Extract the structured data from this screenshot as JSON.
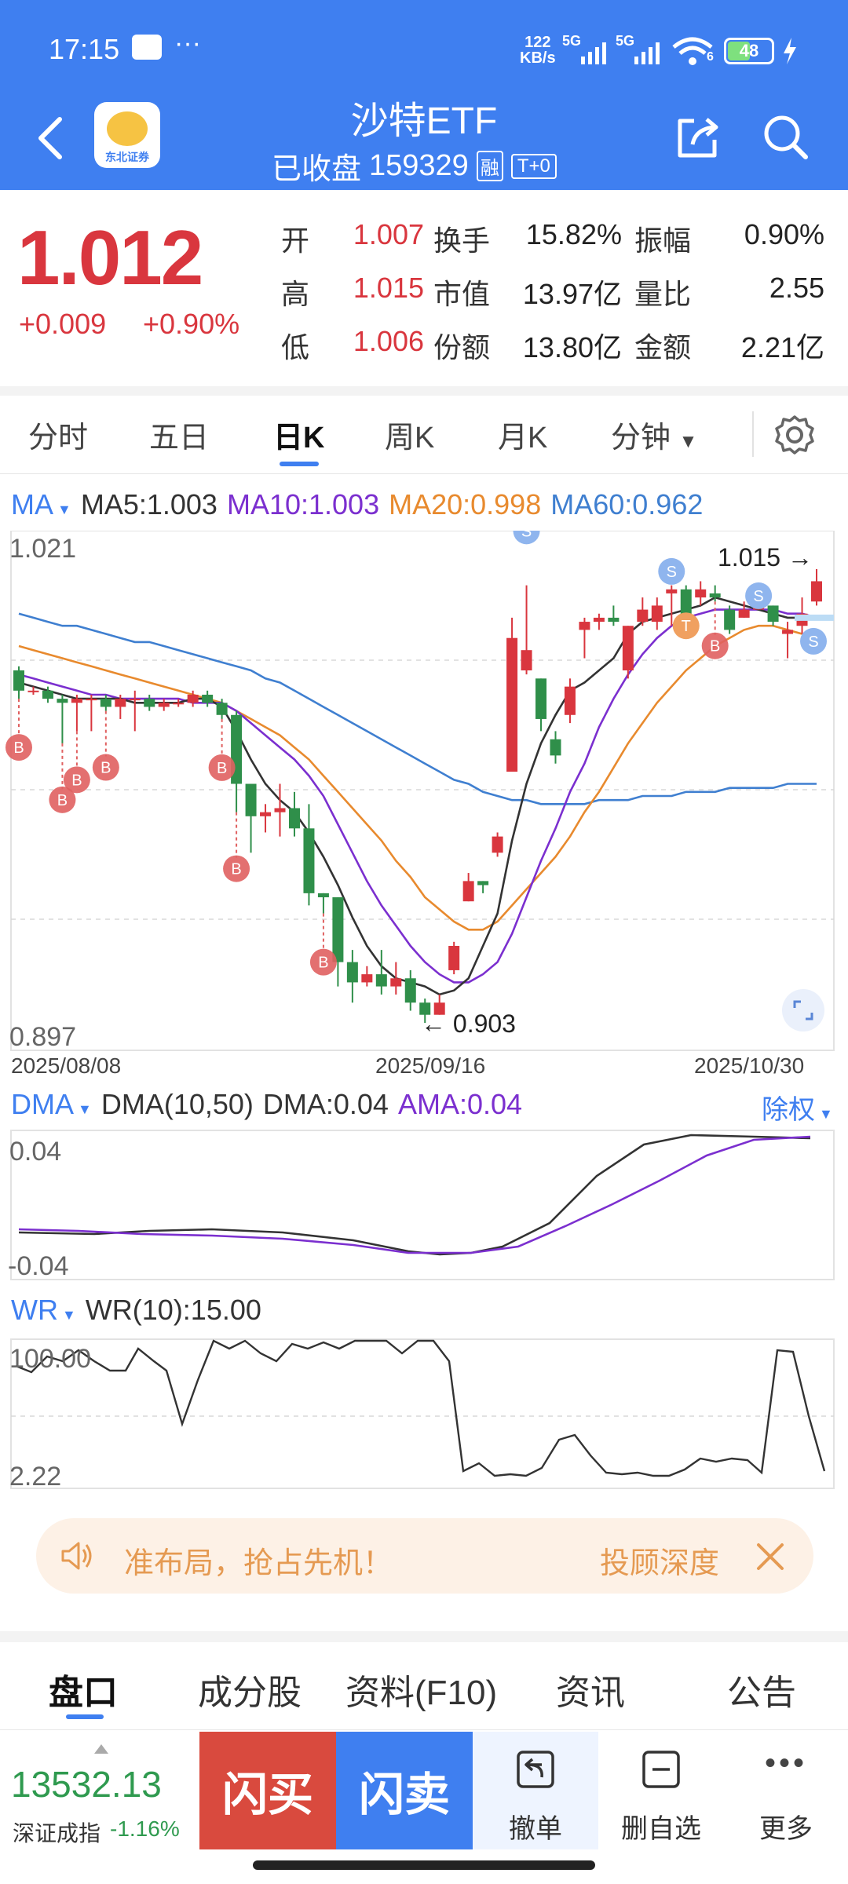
{
  "status_bar": {
    "time": "17:15",
    "dots": "···",
    "net_speed_top": "122",
    "net_speed_bottom": "KB/s",
    "sig1": "5G",
    "sig2": "5G",
    "wifi_sub": "6",
    "battery": "48"
  },
  "header": {
    "title": "沙特ETF",
    "status": "已收盘",
    "code": "159329",
    "badge_margin": "融",
    "badge_t0": "T+0",
    "logo_text": "东北证券"
  },
  "quote": {
    "price": "1.012",
    "change": "+0.009",
    "change_pct": "+0.90%",
    "rows": [
      [
        {
          "label": "开",
          "value": "1.007",
          "red": true
        },
        {
          "label": "换手",
          "value": "15.82%"
        },
        {
          "label": "振幅",
          "value": "0.90%"
        }
      ],
      [
        {
          "label": "高",
          "value": "1.015",
          "red": true
        },
        {
          "label": "市值",
          "value": "13.97亿"
        },
        {
          "label": "量比",
          "value": "2.55"
        }
      ],
      [
        {
          "label": "低",
          "value": "1.006",
          "red": true
        },
        {
          "label": "份额",
          "value": "13.80亿"
        },
        {
          "label": "金额",
          "value": "2.21亿"
        }
      ]
    ]
  },
  "tabs": {
    "items": [
      "分时",
      "五日",
      "日K",
      "周K",
      "月K",
      "分钟"
    ],
    "active": "日K"
  },
  "ma": {
    "label": "MA",
    "ma5": "MA5:1.003",
    "ma10": "MA10:1.003",
    "ma20": "MA20:0.998",
    "ma60": "MA60:0.962"
  },
  "colors": {
    "accent": "#3f7ff0",
    "up": "#d9363e",
    "down": "#2f8f4a",
    "ma5": "#333333",
    "ma10": "#7b2fcf",
    "ma20": "#e88a2e",
    "ma60": "#3f7fd0",
    "buy": "#e06060",
    "sell": "#8fb5ee",
    "t_marker": "#f0a060"
  },
  "chart_data": {
    "type": "candlestick",
    "y_max_label": "1.021",
    "y_min_label": "0.897",
    "x_labels": [
      "2025/08/08",
      "2025/09/16",
      "2025/10/30"
    ],
    "high_annotation": "1.015",
    "low_annotation": "0.903",
    "candles": [
      [
        0.99,
        0.985,
        0.991,
        0.983
      ],
      [
        0.985,
        0.985,
        0.986,
        0.984
      ],
      [
        0.985,
        0.983,
        0.986,
        0.982
      ],
      [
        0.983,
        0.982,
        0.984,
        0.972
      ],
      [
        0.982,
        0.983,
        0.984,
        0.975
      ],
      [
        0.983,
        0.983,
        0.984,
        0.975
      ],
      [
        0.983,
        0.981,
        0.984,
        0.98
      ],
      [
        0.981,
        0.983,
        0.984,
        0.978
      ],
      [
        0.983,
        0.983,
        0.985,
        0.975
      ],
      [
        0.983,
        0.981,
        0.984,
        0.98
      ],
      [
        0.981,
        0.982,
        0.983,
        0.98
      ],
      [
        0.982,
        0.982,
        0.983,
        0.981
      ],
      [
        0.982,
        0.984,
        0.985,
        0.981
      ],
      [
        0.984,
        0.982,
        0.985,
        0.981
      ],
      [
        0.982,
        0.979,
        0.983,
        0.978
      ],
      [
        0.979,
        0.962,
        0.98,
        0.955
      ],
      [
        0.962,
        0.954,
        0.962,
        0.945
      ],
      [
        0.954,
        0.955,
        0.957,
        0.95
      ],
      [
        0.955,
        0.956,
        0.962,
        0.949
      ],
      [
        0.956,
        0.951,
        0.96,
        0.949
      ],
      [
        0.951,
        0.935,
        0.957,
        0.932
      ],
      [
        0.935,
        0.934,
        0.935,
        0.93
      ],
      [
        0.934,
        0.918,
        0.934,
        0.912
      ],
      [
        0.918,
        0.913,
        0.921,
        0.908
      ],
      [
        0.913,
        0.915,
        0.917,
        0.912
      ],
      [
        0.915,
        0.912,
        0.921,
        0.91
      ],
      [
        0.912,
        0.914,
        0.918,
        0.91
      ],
      [
        0.914,
        0.908,
        0.916,
        0.906
      ],
      [
        0.908,
        0.905,
        0.909,
        0.903
      ],
      [
        0.905,
        0.908,
        0.91,
        0.905
      ],
      [
        0.916,
        0.922,
        0.923,
        0.915
      ],
      [
        0.933,
        0.938,
        0.94,
        0.933
      ],
      [
        0.938,
        0.937,
        0.938,
        0.935
      ],
      [
        0.945,
        0.949,
        0.95,
        0.944
      ],
      [
        0.965,
        0.998,
        1.003,
        0.965
      ],
      [
        0.99,
        0.995,
        1.011,
        0.989
      ],
      [
        0.988,
        0.978,
        0.988,
        0.975
      ],
      [
        0.973,
        0.969,
        0.975,
        0.967
      ],
      [
        0.979,
        0.986,
        0.988,
        0.977
      ],
      [
        1.0,
        1.002,
        1.003,
        0.993
      ],
      [
        1.002,
        1.003,
        1.004,
        1.0
      ],
      [
        1.003,
        1.002,
        1.006,
        1.001
      ],
      [
        0.99,
        1.001,
        1.001,
        0.988
      ],
      [
        1.002,
        1.005,
        1.008,
        1.001
      ],
      [
        1.002,
        1.006,
        1.008,
        1.0
      ],
      [
        1.009,
        1.01,
        1.011,
        1.001
      ],
      [
        1.01,
        1.003,
        1.011,
        1.002
      ],
      [
        1.008,
        1.01,
        1.012,
        1.006
      ],
      [
        1.009,
        1.008,
        1.011,
        1.007
      ],
      [
        1.005,
        1.0,
        1.006,
        0.999
      ],
      [
        1.003,
        1.005,
        1.007,
        1.003
      ],
      [
        1.005,
        1.006,
        1.009,
        1.005
      ],
      [
        1.006,
        1.002,
        1.006,
        1.001
      ],
      [
        0.999,
        1.0,
        1.002,
        0.993
      ],
      [
        1.001,
        1.004,
        1.008,
        0.999
      ],
      [
        1.007,
        1.012,
        1.015,
        1.006
      ]
    ],
    "ma5": [
      0.987,
      0.986,
      0.985,
      0.984,
      0.983,
      0.983,
      0.983,
      0.983,
      0.982,
      0.982,
      0.982,
      0.982,
      0.983,
      0.983,
      0.981,
      0.975,
      0.968,
      0.962,
      0.958,
      0.955,
      0.95,
      0.944,
      0.937,
      0.929,
      0.922,
      0.917,
      0.914,
      0.913,
      0.912,
      0.91,
      0.911,
      0.914,
      0.922,
      0.93,
      0.948,
      0.962,
      0.972,
      0.979,
      0.985,
      0.987,
      0.99,
      0.993,
      0.999,
      1.002,
      1.003,
      1.004,
      1.005,
      1.006,
      1.008,
      1.007,
      1.006,
      1.005,
      1.004,
      1.003,
      1.003,
      1.003
    ],
    "ma10": [
      0.989,
      0.988,
      0.987,
      0.986,
      0.985,
      0.984,
      0.984,
      0.983,
      0.983,
      0.983,
      0.983,
      0.983,
      0.982,
      0.982,
      0.982,
      0.98,
      0.977,
      0.974,
      0.971,
      0.968,
      0.964,
      0.959,
      0.952,
      0.945,
      0.938,
      0.932,
      0.927,
      0.922,
      0.918,
      0.915,
      0.913,
      0.913,
      0.915,
      0.918,
      0.925,
      0.934,
      0.943,
      0.951,
      0.96,
      0.967,
      0.976,
      0.983,
      0.989,
      0.994,
      0.998,
      1.001,
      1.003,
      1.004,
      1.005,
      1.005,
      1.005,
      1.005,
      1.005,
      1.004,
      1.004,
      1.003
    ],
    "ma20": [
      0.996,
      0.995,
      0.994,
      0.993,
      0.992,
      0.991,
      0.99,
      0.989,
      0.988,
      0.987,
      0.986,
      0.985,
      0.984,
      0.983,
      0.982,
      0.98,
      0.978,
      0.976,
      0.974,
      0.971,
      0.968,
      0.964,
      0.96,
      0.956,
      0.952,
      0.948,
      0.943,
      0.939,
      0.934,
      0.931,
      0.928,
      0.926,
      0.926,
      0.928,
      0.932,
      0.936,
      0.94,
      0.944,
      0.949,
      0.955,
      0.96,
      0.966,
      0.972,
      0.977,
      0.982,
      0.986,
      0.99,
      0.993,
      0.996,
      0.998,
      1.0,
      1.001,
      1.001,
      1.0,
      0.999,
      0.998
    ],
    "ma60": [
      1.004,
      1.003,
      1.002,
      1.001,
      1.001,
      1.0,
      0.999,
      0.998,
      0.997,
      0.997,
      0.996,
      0.995,
      0.994,
      0.993,
      0.992,
      0.991,
      0.99,
      0.988,
      0.987,
      0.985,
      0.983,
      0.981,
      0.979,
      0.977,
      0.975,
      0.973,
      0.971,
      0.969,
      0.967,
      0.965,
      0.963,
      0.962,
      0.96,
      0.959,
      0.958,
      0.958,
      0.957,
      0.957,
      0.957,
      0.957,
      0.958,
      0.958,
      0.958,
      0.959,
      0.959,
      0.959,
      0.96,
      0.96,
      0.96,
      0.961,
      0.961,
      0.961,
      0.961,
      0.962,
      0.962,
      0.962
    ]
  },
  "dma": {
    "label": "DMA",
    "params": "DMA(10,50)",
    "dma": "DMA:0.04",
    "ama": "AMA:0.04",
    "adjust": "除权",
    "y_max": "0.04",
    "y_min": "-0.04"
  },
  "wr": {
    "label": "WR",
    "value": "WR(10):15.00",
    "y_max": "100.00",
    "y_min": "2.22"
  },
  "banner": {
    "text": "准布局，抢占先机！",
    "link": "投顾深度"
  },
  "bottom_tabs": [
    "盘口",
    "成分股",
    "资料(F10)",
    "资讯",
    "公告"
  ],
  "footer": {
    "index_value": "13532.13",
    "index_name": "深证成指",
    "index_change": "-1.16%",
    "buy": "闪买",
    "sell": "闪卖",
    "cancel": "撤单",
    "remove": "删自选",
    "more": "更多"
  }
}
